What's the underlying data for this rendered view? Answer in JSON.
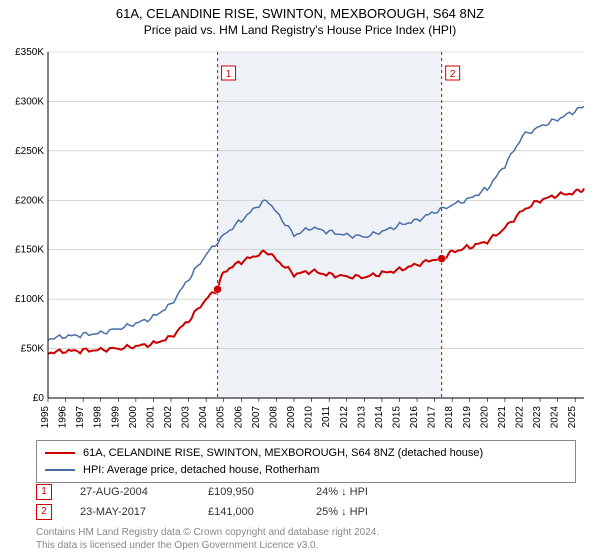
{
  "title_line1": "61A, CELANDINE RISE, SWINTON, MEXBOROUGH, S64 8NZ",
  "title_line2": "Price paid vs. HM Land Registry's House Price Index (HPI)",
  "chart": {
    "type": "line",
    "background_color": "#ffffff",
    "plot_shade_color": "#eef2f7",
    "plot_shade_x_start": 2004.65,
    "plot_shade_x_end": 2017.4,
    "grid_color": "#bfbfbf",
    "axis_color": "#000000",
    "xlim": [
      1995,
      2025.5
    ],
    "ylim": [
      0,
      350000
    ],
    "ytick_step": 50000,
    "ytick_prefix": "£",
    "ytick_suffix": "K",
    "yticks": [
      0,
      50000,
      100000,
      150000,
      200000,
      250000,
      300000,
      350000
    ],
    "xticks": [
      1995,
      1996,
      1997,
      1998,
      1999,
      2000,
      2001,
      2002,
      2003,
      2004,
      2005,
      2006,
      2007,
      2008,
      2009,
      2010,
      2011,
      2012,
      2013,
      2014,
      2015,
      2016,
      2017,
      2018,
      2019,
      2020,
      2021,
      2022,
      2023,
      2024,
      2025
    ],
    "label_fontsize": 10,
    "marker_lines": [
      {
        "x": 2004.65,
        "label": "1",
        "color": "#cc0000"
      },
      {
        "x": 2017.4,
        "label": "2",
        "color": "#cc0000"
      }
    ],
    "sale_points": [
      {
        "x": 2004.65,
        "y": 109950,
        "color": "#cc0000"
      },
      {
        "x": 2017.4,
        "y": 141000,
        "color": "#cc0000"
      }
    ],
    "series": [
      {
        "name": "property",
        "color": "#cc0000",
        "width": 2,
        "x": [
          1995,
          1996,
          1997,
          1998,
          1999,
          2000,
          2001,
          2002,
          2003,
          2004,
          2004.65,
          2005,
          2006,
          2007,
          2007.5,
          2008,
          2009,
          2010,
          2011,
          2012,
          2013,
          2014,
          2015,
          2016,
          2017,
          2017.4,
          2018,
          2019,
          2020,
          2021,
          2022,
          2023,
          2024,
          2025,
          2025.5
        ],
        "y": [
          46000,
          47000,
          48000,
          49000,
          50000,
          52000,
          55000,
          62000,
          78000,
          100000,
          109950,
          128000,
          138000,
          145000,
          148000,
          140000,
          125000,
          128000,
          125000,
          123000,
          122000,
          126000,
          130000,
          135000,
          140000,
          141000,
          148000,
          153000,
          158000,
          172000,
          190000,
          200000,
          205000,
          208000,
          212000
        ]
      },
      {
        "name": "hpi",
        "color": "#4a6fa5",
        "width": 1.5,
        "x": [
          1995,
          1996,
          1997,
          1998,
          1999,
          2000,
          2001,
          2002,
          2003,
          2004,
          2005,
          2006,
          2007,
          2007.5,
          2008,
          2009,
          2010,
          2011,
          2012,
          2013,
          2014,
          2015,
          2016,
          2017,
          2018,
          2019,
          2020,
          2021,
          2022,
          2023,
          2024,
          2025,
          2025.5
        ],
        "y": [
          60000,
          62000,
          64000,
          66000,
          70000,
          75000,
          82000,
          95000,
          120000,
          145000,
          165000,
          180000,
          195000,
          200000,
          188000,
          165000,
          172000,
          168000,
          165000,
          163000,
          168000,
          175000,
          180000,
          188000,
          195000,
          202000,
          212000,
          235000,
          265000,
          275000,
          282000,
          290000,
          295000
        ]
      }
    ]
  },
  "legend": {
    "items": [
      {
        "color": "#cc0000",
        "label": "61A, CELANDINE RISE, SWINTON, MEXBOROUGH, S64 8NZ (detached house)"
      },
      {
        "color": "#4a6fa5",
        "label": "HPI: Average price, detached house, Rotherham"
      }
    ]
  },
  "sales": [
    {
      "num": "1",
      "date": "27-AUG-2004",
      "price": "£109,950",
      "delta": "24% ↓ HPI",
      "color": "#cc0000"
    },
    {
      "num": "2",
      "date": "23-MAY-2017",
      "price": "£141,000",
      "delta": "25% ↓ HPI",
      "color": "#cc0000"
    }
  ],
  "footer_line1": "Contains HM Land Registry data © Crown copyright and database right 2024.",
  "footer_line2": "This data is licensed under the Open Government Licence v3.0."
}
